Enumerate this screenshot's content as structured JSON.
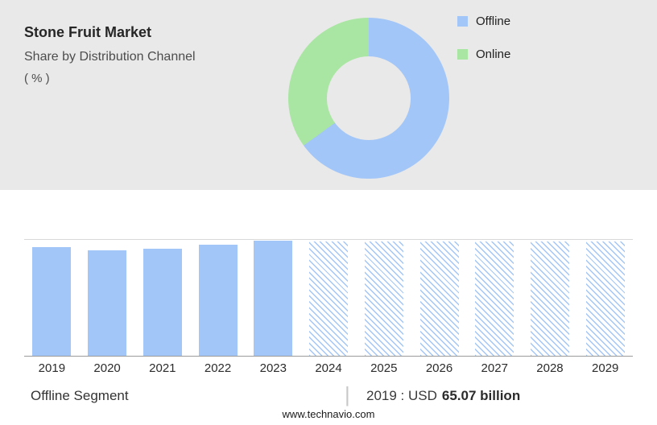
{
  "header": {
    "title": "Stone Fruit Market",
    "subtitle": "Share by Distribution Channel",
    "unit": "( % )"
  },
  "donut": {
    "type": "donut",
    "title": "Share by Distribution Channel ( % )",
    "segments": [
      {
        "label": "Offline",
        "value": 65,
        "color": "#a3c6f8"
      },
      {
        "label": "Online",
        "value": 35,
        "color": "#aae6a3"
      }
    ],
    "hole_color": "#e9e9e9",
    "legend_position": "right"
  },
  "chart_data": {
    "type": "bar",
    "title": "",
    "xlabel": "",
    "ylabel": "",
    "unit": "USD billion",
    "categories": [
      "2019",
      "2020",
      "2021",
      "2022",
      "2023",
      "2024",
      "2025",
      "2026",
      "2027",
      "2028",
      "2029"
    ],
    "values": [
      65.07,
      63.2,
      64.3,
      66.6,
      68.8,
      68.5,
      68.5,
      68.5,
      68.5,
      68.5,
      68.5
    ],
    "forecast_from": "2024",
    "ylim": [
      0,
      69.5
    ],
    "bar_color": "#a3c6f8",
    "grid": false,
    "legend_position": "none"
  },
  "footer": {
    "segment_label": "Offline Segment",
    "separator": "|",
    "stat_prefix": "2019 : USD",
    "stat_value": "65.07 billion",
    "website": "www.technavio.com"
  }
}
